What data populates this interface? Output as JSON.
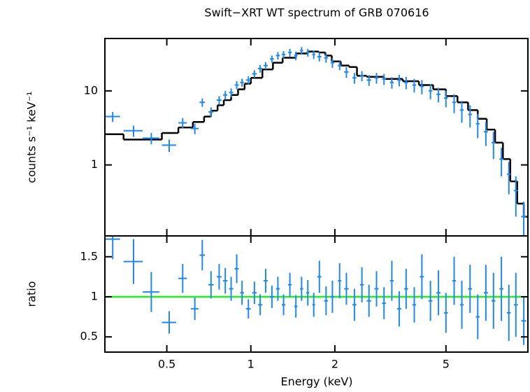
{
  "chart_data": {
    "type": "scatter",
    "title": "Swift−XRT WT spectrum of GRB 070616",
    "xlabel": "Energy (keV)",
    "xlim": [
      0.3,
      9.83
    ],
    "xticks": [
      0.5,
      1,
      2,
      5
    ],
    "log_x": true,
    "upper": {
      "ylabel": "counts s⁻¹ keV⁻¹",
      "ylim": [
        0.11,
        51
      ],
      "yticks": [
        1,
        10
      ],
      "log_y": true
    },
    "lower": {
      "ylabel": "ratio",
      "ylim": [
        0.31,
        1.76
      ],
      "yticks": [
        0.5,
        1,
        1.5
      ],
      "log_y": false,
      "reference": {
        "value": 1,
        "color": "#22ee22"
      }
    },
    "series": [
      {
        "color": "#1e88ee",
        "x": [
          0.32,
          0.38,
          0.44,
          0.51,
          0.57,
          0.63,
          0.67,
          0.72,
          0.77,
          0.81,
          0.85,
          0.89,
          0.93,
          0.98,
          1.03,
          1.08,
          1.13,
          1.19,
          1.25,
          1.31,
          1.38,
          1.45,
          1.52,
          1.6,
          1.68,
          1.76,
          1.86,
          1.96,
          2.08,
          2.2,
          2.35,
          2.5,
          2.65,
          2.82,
          3.0,
          3.2,
          3.4,
          3.6,
          3.85,
          4.1,
          4.4,
          4.7,
          5.0,
          5.35,
          5.7,
          6.1,
          6.5,
          6.95,
          7.4,
          7.9,
          8.4,
          8.9,
          9.5
        ],
        "xerr": [
          0.02,
          0.03,
          0.03,
          0.03,
          0.02,
          0.02,
          0.015,
          0.015,
          0.015,
          0.015,
          0.015,
          0.015,
          0.015,
          0.02,
          0.02,
          0.02,
          0.02,
          0.02,
          0.02,
          0.02,
          0.02,
          0.02,
          0.02,
          0.02,
          0.02,
          0.03,
          0.03,
          0.03,
          0.03,
          0.04,
          0.04,
          0.04,
          0.05,
          0.05,
          0.05,
          0.05,
          0.06,
          0.06,
          0.06,
          0.07,
          0.07,
          0.08,
          0.08,
          0.08,
          0.09,
          0.1,
          0.1,
          0.12,
          0.12,
          0.13,
          0.13,
          0.15,
          0.2
        ],
        "values": [
          4.5,
          2.9,
          2.3,
          1.85,
          3.7,
          3.1,
          7,
          5.2,
          7.5,
          8.8,
          9.5,
          12,
          13,
          14,
          17,
          20,
          22,
          27,
          30,
          31,
          33,
          30,
          35,
          33,
          31,
          29,
          28,
          24,
          22,
          18,
          15,
          16,
          14,
          15,
          14.5,
          13,
          14,
          13,
          12,
          11.5,
          10,
          9,
          8,
          7,
          5.5,
          4.8,
          3.6,
          2.8,
          2.0,
          1.2,
          0.75,
          0.45,
          0.2
        ],
        "errors": [
          0.7,
          0.5,
          0.4,
          0.35,
          0.6,
          0.5,
          0.9,
          0.8,
          1,
          1.2,
          1.3,
          1.5,
          1.6,
          1.7,
          2,
          2.4,
          2.5,
          3,
          3.5,
          3.5,
          4,
          4,
          4,
          4,
          4,
          4,
          4,
          3.5,
          3,
          3,
          2.5,
          2.5,
          2.3,
          2.5,
          2.5,
          2.3,
          2.5,
          2.5,
          2.5,
          2.5,
          2.3,
          2,
          2,
          2,
          1.8,
          1.6,
          1.3,
          1,
          0.8,
          0.5,
          0.35,
          0.25,
          0.12
        ],
        "ratio": [
          1.72,
          1.44,
          1.06,
          0.68,
          1.23,
          0.85,
          1.52,
          1.15,
          1.25,
          1.2,
          1.1,
          1.35,
          1.05,
          0.85,
          1.05,
          0.9,
          1.2,
          1.0,
          1.1,
          0.9,
          1.15,
          0.88,
          1.1,
          1.05,
          0.9,
          1.25,
          0.95,
          1.0,
          1.2,
          1.1,
          0.9,
          1.15,
          0.95,
          1.1,
          0.92,
          1.2,
          0.85,
          1.1,
          0.9,
          1.25,
          0.95,
          1.05,
          0.8,
          1.2,
          0.9,
          1.1,
          0.75,
          1.05,
          0.95,
          1.1,
          0.8,
          0.9,
          0.7
        ],
        "ratio_errors": [
          0.25,
          0.28,
          0.25,
          0.14,
          0.18,
          0.14,
          0.19,
          0.17,
          0.16,
          0.16,
          0.15,
          0.18,
          0.15,
          0.12,
          0.14,
          0.13,
          0.15,
          0.14,
          0.15,
          0.13,
          0.15,
          0.14,
          0.15,
          0.16,
          0.15,
          0.2,
          0.18,
          0.2,
          0.22,
          0.2,
          0.2,
          0.22,
          0.2,
          0.22,
          0.2,
          0.25,
          0.22,
          0.25,
          0.22,
          0.28,
          0.25,
          0.28,
          0.25,
          0.3,
          0.3,
          0.3,
          0.28,
          0.35,
          0.35,
          0.4,
          0.35,
          0.4,
          0.3
        ]
      }
    ],
    "model": {
      "color": "#000000",
      "edges": [
        0.3,
        0.35,
        0.48,
        0.55,
        0.62,
        0.68,
        0.72,
        0.76,
        0.8,
        0.85,
        0.9,
        0.95,
        1.0,
        1.1,
        1.2,
        1.3,
        1.45,
        1.6,
        1.75,
        1.85,
        1.95,
        2.1,
        2.25,
        2.4,
        2.6,
        3,
        3.5,
        4,
        4.5,
        5,
        5.5,
        6,
        6.5,
        7,
        7.5,
        8,
        8.5,
        9,
        9.5,
        9.8
      ],
      "values": [
        2.6,
        2.2,
        2.7,
        3.2,
        3.8,
        4.5,
        5.4,
        6.4,
        7.5,
        8.8,
        10.5,
        12.5,
        15,
        19.5,
        24,
        28,
        32,
        34,
        33,
        30,
        25,
        22,
        21,
        16,
        15.5,
        14.5,
        13.5,
        12,
        10.5,
        8.5,
        7,
        5.5,
        4.2,
        3,
        2,
        1.2,
        0.6,
        0.3,
        0.2
      ]
    }
  }
}
